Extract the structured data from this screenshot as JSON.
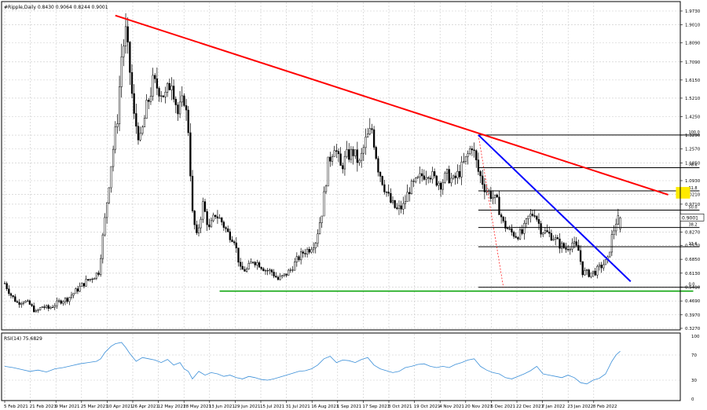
{
  "window": {
    "title": "#Ripple,Daily  0.8430 0.9064 0.8244 0.9001"
  },
  "colors": {
    "candle": "#000000",
    "grid": "#c8c8c8",
    "downtrend_major": "#ff0000",
    "downtrend_minor": "#0000ff",
    "support": "#00a000",
    "fib": "#000000",
    "fib_projection": "#ff0000",
    "target_box": "#ffea00",
    "rsi": "#3b8fd8",
    "price_marker_bg": "#ffffff"
  },
  "chart_data": [
    {
      "type": "candlestick",
      "symbol": "#Ripple",
      "timeframe": "Daily",
      "ohlc_last": {
        "open": 0.843,
        "high": 0.9064,
        "low": 0.8244,
        "close": 0.9001
      },
      "current_price_label": "0.9001",
      "y_ticks": [
        "1.9730",
        "1.9010",
        "1.8090",
        "1.7090",
        "1.6150",
        "1.5210",
        "1.4250",
        "1.3290",
        "1.2570",
        "1.1850",
        "1.0930",
        "1.0210",
        "0.9710",
        "0.9010",
        "0.8270",
        "0.7570",
        "0.6850",
        "0.6130",
        "0.5410",
        "0.4690",
        "0.3970",
        "0.3270"
      ],
      "x_ticks": [
        "5 Feb 2021",
        "21 Feb 2021",
        "9 Mar 2021",
        "25 Mar 2021",
        "10 Apr 2021",
        "26 Apr 2021",
        "12 May 2021",
        "28 May 2021",
        "13 Jun 2021",
        "29 Jun 2021",
        "15 Jul 2021",
        "31 Jul 2021",
        "16 Aug 2021",
        "1 Sep 2021",
        "17 Sep 2021",
        "3 Oct 2021",
        "19 Oct 2021",
        "4 Nov 2021",
        "20 Nov 2021",
        "6 Dec 2021",
        "22 Dec 2021",
        "7 Jan 2022",
        "23 Jan 2022",
        "8 Feb 2022"
      ],
      "ylim": [
        0.327,
        1.973
      ],
      "price_path": [
        [
          0,
          0.56
        ],
        [
          3,
          0.5
        ],
        [
          6,
          0.46
        ],
        [
          9,
          0.47
        ],
        [
          12,
          0.45
        ],
        [
          15,
          0.41
        ],
        [
          18,
          0.44
        ],
        [
          21,
          0.43
        ],
        [
          24,
          0.45
        ],
        [
          27,
          0.47
        ],
        [
          30,
          0.48
        ],
        [
          33,
          0.51
        ],
        [
          36,
          0.54
        ],
        [
          39,
          0.57
        ],
        [
          42,
          0.59
        ],
        [
          45,
          0.62
        ],
        [
          48,
          0.89
        ],
        [
          51,
          1.18
        ],
        [
          54,
          1.42
        ],
        [
          56,
          1.74
        ],
        [
          58,
          1.86
        ],
        [
          60,
          1.66
        ],
        [
          62,
          1.42
        ],
        [
          65,
          1.3
        ],
        [
          68,
          1.47
        ],
        [
          71,
          1.6
        ],
        [
          74,
          1.57
        ],
        [
          77,
          1.53
        ],
        [
          80,
          1.62
        ],
        [
          83,
          1.44
        ],
        [
          86,
          1.52
        ],
        [
          88,
          1.36
        ],
        [
          90,
          0.92
        ],
        [
          92,
          0.8
        ],
        [
          95,
          0.97
        ],
        [
          98,
          0.84
        ],
        [
          101,
          0.92
        ],
        [
          104,
          0.88
        ],
        [
          107,
          0.82
        ],
        [
          110,
          0.79
        ],
        [
          113,
          0.63
        ],
        [
          116,
          0.63
        ],
        [
          119,
          0.68
        ],
        [
          122,
          0.66
        ],
        [
          125,
          0.63
        ],
        [
          128,
          0.62
        ],
        [
          131,
          0.58
        ],
        [
          134,
          0.6
        ],
        [
          137,
          0.63
        ],
        [
          140,
          0.68
        ],
        [
          143,
          0.72
        ],
        [
          146,
          0.74
        ],
        [
          149,
          0.78
        ],
        [
          152,
          0.93
        ],
        [
          155,
          1.18
        ],
        [
          158,
          1.28
        ],
        [
          161,
          1.16
        ],
        [
          164,
          1.22
        ],
        [
          167,
          1.24
        ],
        [
          170,
          1.18
        ],
        [
          173,
          1.3
        ],
        [
          176,
          1.36
        ],
        [
          179,
          1.16
        ],
        [
          182,
          1.06
        ],
        [
          185,
          0.98
        ],
        [
          188,
          0.94
        ],
        [
          191,
          0.96
        ],
        [
          194,
          1.05
        ],
        [
          197,
          1.08
        ],
        [
          200,
          1.12
        ],
        [
          203,
          1.14
        ],
        [
          206,
          1.1
        ],
        [
          209,
          1.08
        ],
        [
          212,
          1.12
        ],
        [
          215,
          1.09
        ],
        [
          218,
          1.14
        ],
        [
          221,
          1.2
        ],
        [
          224,
          1.28
        ],
        [
          227,
          1.14
        ],
        [
          230,
          1.06
        ],
        [
          233,
          1.02
        ],
        [
          236,
          0.98
        ],
        [
          239,
          0.87
        ],
        [
          242,
          0.83
        ],
        [
          245,
          0.81
        ],
        [
          248,
          0.82
        ],
        [
          251,
          0.9
        ],
        [
          254,
          0.93
        ],
        [
          257,
          0.84
        ],
        [
          260,
          0.82
        ],
        [
          263,
          0.8
        ],
        [
          266,
          0.76
        ],
        [
          269,
          0.74
        ],
        [
          272,
          0.77
        ],
        [
          275,
          0.73
        ],
        [
          277,
          0.62
        ],
        [
          280,
          0.61
        ],
        [
          283,
          0.62
        ],
        [
          286,
          0.65
        ],
        [
          289,
          0.68
        ],
        [
          291,
          0.8
        ],
        [
          293,
          0.88
        ],
        [
          295,
          0.9
        ]
      ],
      "series": [
        {
          "name": "",
          "kind": "trendline",
          "color": "downtrend_major",
          "points": [
            [
              53,
              1.95
            ],
            [
              318,
              1.02
            ]
          ]
        },
        {
          "name": "",
          "kind": "trendline",
          "color": "downtrend_minor",
          "points": [
            [
              227,
              1.33
            ],
            [
              300,
              0.57
            ]
          ]
        },
        {
          "name": "",
          "kind": "horizontal",
          "color": "support",
          "y": 0.52,
          "x_range": [
            103,
            330
          ]
        }
      ],
      "fibonacci": {
        "levels": [
          {
            "label": "100.0",
            "value": 1.33
          },
          {
            "label": "78.6",
            "value": 1.16
          },
          {
            "label": "61.8",
            "value": 1.04
          },
          {
            "label": "50.0",
            "value": 0.94
          },
          {
            "label": "38.2",
            "value": 0.85
          },
          {
            "label": "23.6",
            "value": 0.75
          },
          {
            "label": "0.0",
            "value": 0.54
          }
        ],
        "x_range": [
          227,
          333
        ]
      },
      "target_zone": {
        "y_range": [
          1.0,
          1.06
        ]
      },
      "grid": true
    },
    {
      "type": "line",
      "indicator_label": "RSI(14) 75.6829",
      "y_ticks": [
        "100",
        "70",
        "30",
        "0"
      ],
      "ylim": [
        0,
        100
      ],
      "values": [
        [
          0,
          52
        ],
        [
          4,
          50
        ],
        [
          8,
          47
        ],
        [
          12,
          44
        ],
        [
          16,
          46
        ],
        [
          20,
          43
        ],
        [
          24,
          48
        ],
        [
          28,
          50
        ],
        [
          32,
          53
        ],
        [
          36,
          56
        ],
        [
          40,
          58
        ],
        [
          44,
          60
        ],
        [
          46,
          64
        ],
        [
          48,
          74
        ],
        [
          51,
          84
        ],
        [
          53,
          88
        ],
        [
          56,
          90
        ],
        [
          58,
          82
        ],
        [
          60,
          72
        ],
        [
          63,
          60
        ],
        [
          66,
          66
        ],
        [
          69,
          64
        ],
        [
          72,
          62
        ],
        [
          75,
          58
        ],
        [
          78,
          63
        ],
        [
          81,
          54
        ],
        [
          84,
          58
        ],
        [
          86,
          48
        ],
        [
          88,
          44
        ],
        [
          90,
          32
        ],
        [
          93,
          44
        ],
        [
          96,
          38
        ],
        [
          99,
          42
        ],
        [
          102,
          40
        ],
        [
          105,
          36
        ],
        [
          108,
          38
        ],
        [
          111,
          34
        ],
        [
          114,
          32
        ],
        [
          117,
          36
        ],
        [
          120,
          34
        ],
        [
          123,
          31
        ],
        [
          126,
          30
        ],
        [
          129,
          32
        ],
        [
          132,
          35
        ],
        [
          135,
          38
        ],
        [
          138,
          41
        ],
        [
          141,
          44
        ],
        [
          144,
          45
        ],
        [
          147,
          48
        ],
        [
          150,
          54
        ],
        [
          153,
          64
        ],
        [
          156,
          68
        ],
        [
          159,
          58
        ],
        [
          162,
          62
        ],
        [
          165,
          61
        ],
        [
          168,
          58
        ],
        [
          171,
          63
        ],
        [
          174,
          66
        ],
        [
          177,
          54
        ],
        [
          180,
          48
        ],
        [
          183,
          45
        ],
        [
          186,
          42
        ],
        [
          189,
          44
        ],
        [
          192,
          50
        ],
        [
          195,
          52
        ],
        [
          198,
          55
        ],
        [
          201,
          56
        ],
        [
          204,
          52
        ],
        [
          207,
          50
        ],
        [
          210,
          52
        ],
        [
          213,
          50
        ],
        [
          216,
          55
        ],
        [
          219,
          58
        ],
        [
          222,
          62
        ],
        [
          225,
          64
        ],
        [
          228,
          52
        ],
        [
          231,
          46
        ],
        [
          234,
          42
        ],
        [
          237,
          40
        ],
        [
          240,
          34
        ],
        [
          243,
          32
        ],
        [
          246,
          36
        ],
        [
          249,
          40
        ],
        [
          252,
          45
        ],
        [
          255,
          52
        ],
        [
          258,
          40
        ],
        [
          261,
          38
        ],
        [
          264,
          36
        ],
        [
          267,
          34
        ],
        [
          270,
          38
        ],
        [
          273,
          34
        ],
        [
          276,
          26
        ],
        [
          279,
          24
        ],
        [
          282,
          30
        ],
        [
          285,
          33
        ],
        [
          288,
          40
        ],
        [
          291,
          60
        ],
        [
          293,
          70
        ],
        [
          295,
          76
        ]
      ]
    }
  ]
}
